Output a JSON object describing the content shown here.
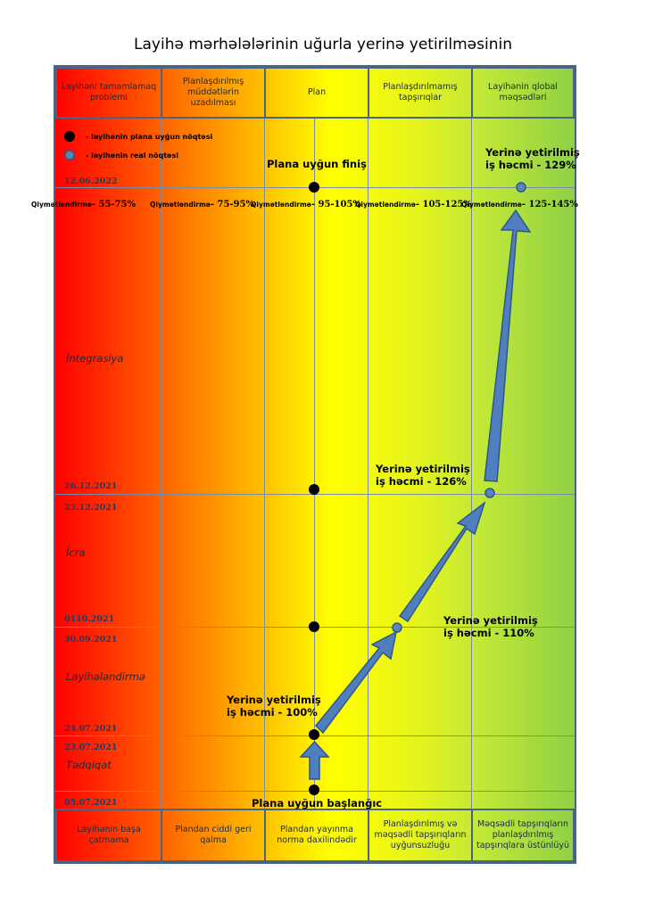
{
  "title": "Layihə mərhələlərinin uğurla yerinə yetirilməsinin",
  "header": [
    "Layihəni tamamlamaq problemi",
    "Planlaşdırılmış müddətlərin uzadılması",
    "Plan",
    "Planlaşdırılmamış tapşırıqlar",
    "Layihənin qlobal məqsədləri"
  ],
  "footer": [
    "Layihənin başa çatmama",
    "Plandan ciddi geri qalma",
    "Plandan yayınma norma daxilindədir",
    "Planlaşdırılmış və məqsədli tapşırıqların uyğunsuzluğu",
    "Məqsədli tapşırıqların planlaşdırılmış tapşırıqlara üstünlüyü"
  ],
  "legend": {
    "plan_point": "- layihənin plana uyğun nöqtəsi",
    "real_point": "- layihənin real nöqtəsi"
  },
  "dates": [
    "12.06.2022",
    "26.12.2021",
    "25.12.2021",
    "0110.2021",
    "30.09.2021",
    "24.07.2021",
    "23.07.2021",
    "05.07.2021"
  ],
  "phases": [
    "İntegrasiya",
    "İcra",
    "Layihələndirmə",
    "Tədqiqat"
  ],
  "ratings": [
    {
      "label": "Qiymətləndirmə",
      "value": "- 55-75%"
    },
    {
      "label": "Qiymətləndirmə",
      "value": "- 75-95%"
    },
    {
      "label": "Qiymətləndirmə",
      "value": "- 95-105%"
    },
    {
      "label": "Qiymətləndirmə",
      "value": "- 105-125%"
    },
    {
      "label": "Qiymətləndirmə",
      "value": "- 125-145%"
    }
  ],
  "labels": {
    "finish": "Plana uyğun finiş",
    "start": "Plana uyğun başlanğıc",
    "work_done": "Yerinə yetirilmiş",
    "volume_129": "iş həcmi - 129%",
    "volume_126": "iş həcmi - 126%",
    "volume_110": "iş həcmi - 110%",
    "volume_100": "iş həcmi - 100%"
  },
  "colors": {
    "border": "#4a6484",
    "arrow": "#4f7fbf",
    "arrow_stroke": "#2f5688",
    "plan_dot": "#000000",
    "real_dot": "#5b86bd",
    "gradient_start": "#ff0000",
    "gradient_end": "#8fd145"
  }
}
